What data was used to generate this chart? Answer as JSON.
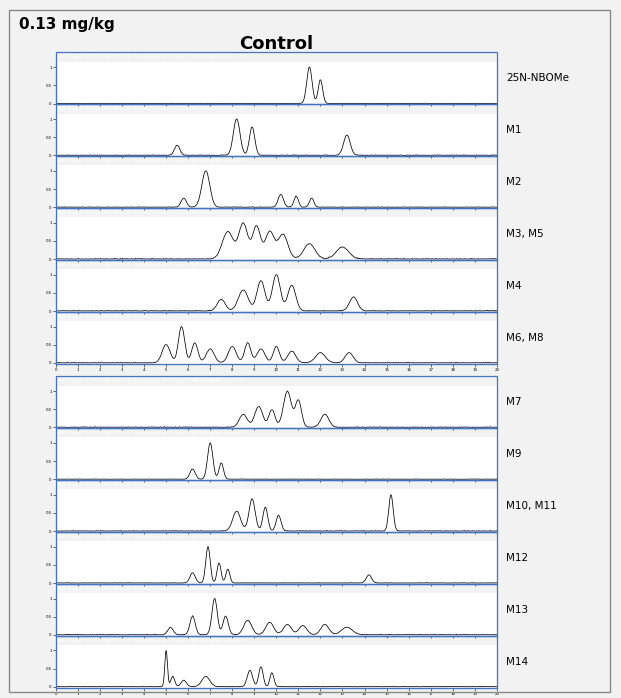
{
  "title": "Control",
  "dose_label": "0.13 mg/kg",
  "panel_labels": [
    "25N-NBOMe",
    "M1",
    "M2",
    "M3, M5",
    "M4",
    "M6, M8",
    "M7",
    "M9",
    "M10, M11",
    "M12",
    "M13",
    "M14"
  ],
  "background_color": "#f0f0f0",
  "border_color": "#4472c4",
  "header_bg": "#4472c4",
  "trace_color": "#000000",
  "n_panels_group1": 6,
  "n_panels_group2": 6
}
